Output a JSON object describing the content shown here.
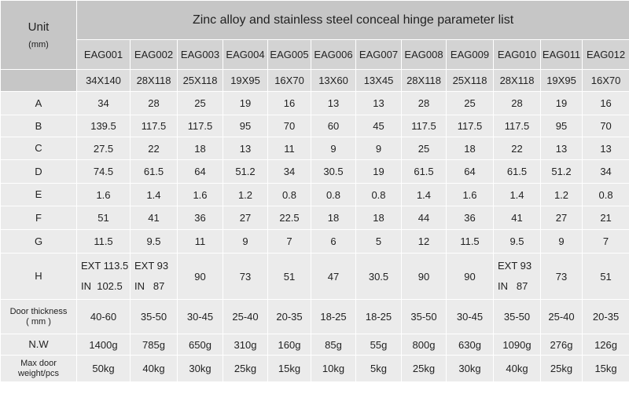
{
  "header": {
    "title": "Zinc alloy and stainless steel conceal hinge  parameter list",
    "unit": "Unit",
    "unit_sub": "(mm)"
  },
  "models": [
    {
      "code": "EAG001",
      "size": "34X140"
    },
    {
      "code": "EAG002",
      "size": "28X118"
    },
    {
      "code": "EAG003",
      "size": "25X118"
    },
    {
      "code": "EAG004",
      "size": "19X95"
    },
    {
      "code": "EAG005",
      "size": "16X70"
    },
    {
      "code": "EAG006",
      "size": "13X60"
    },
    {
      "code": "EAG007",
      "size": "13X45"
    },
    {
      "code": "EAG008",
      "size": "28X118"
    },
    {
      "code": "EAG009",
      "size": "25X118"
    },
    {
      "code": "EAG010",
      "size": "28X118"
    },
    {
      "code": "EAG011",
      "size": "19X95"
    },
    {
      "code": "EAG012",
      "size": "16X70"
    }
  ],
  "rows": [
    {
      "label": [
        "A"
      ],
      "values": [
        "34",
        "28",
        "25",
        "19",
        "16",
        "13",
        "13",
        "28",
        "25",
        "28",
        "19",
        "16"
      ]
    },
    {
      "label": [
        "B"
      ],
      "values": [
        "139.5",
        "117.5",
        "117.5",
        "95",
        "70",
        "60",
        "45",
        "117.5",
        "117.5",
        "117.5",
        "95",
        "70"
      ]
    },
    {
      "label": [
        "C"
      ],
      "values": [
        "27.5",
        "22",
        "18",
        "13",
        "11",
        "9",
        "9",
        "25",
        "18",
        "22",
        "13",
        "13"
      ]
    },
    {
      "label": [
        "D"
      ],
      "values": [
        "74.5",
        "61.5",
        "64",
        "51.2",
        "34",
        "30.5",
        "19",
        "61.5",
        "64",
        "61.5",
        "51.2",
        "34"
      ]
    },
    {
      "label": [
        "E"
      ],
      "values": [
        "1.6",
        "1.4",
        "1.6",
        "1.2",
        "0.8",
        "0.8",
        "0.8",
        "1.4",
        "1.6",
        "1.4",
        "1.2",
        "0.8"
      ]
    },
    {
      "label": [
        "F"
      ],
      "values": [
        "51",
        "41",
        "36",
        "27",
        "22.5",
        "18",
        "18",
        "44",
        "36",
        "41",
        "27",
        "21"
      ]
    },
    {
      "label": [
        "G"
      ],
      "values": [
        "11.5",
        "9.5",
        "11",
        "9",
        "7",
        "6",
        "5",
        "12",
        "11.5",
        "9.5",
        "9",
        "7"
      ]
    },
    {
      "label": [
        "H"
      ],
      "values": [
        [
          "EXT 113.5",
          "IN  102.5"
        ],
        [
          "EXT 93",
          "IN   87"
        ],
        "90",
        "73",
        "51",
        "47",
        "30.5",
        "90",
        "90",
        [
          "EXT 93",
          "IN   87"
        ],
        "73",
        "51"
      ]
    },
    {
      "label": [
        "Door thickness",
        "( mm )"
      ],
      "values": [
        "40-60",
        "35-50",
        "30-45",
        "25-40",
        "20-35",
        "18-25",
        "18-25",
        "35-50",
        "30-45",
        "35-50",
        "25-40",
        "20-35"
      ]
    },
    {
      "label": [
        "N.W"
      ],
      "values": [
        "1400g",
        "785g",
        "650g",
        "310g",
        "160g",
        "85g",
        "55g",
        "800g",
        "630g",
        "1090g",
        "276g",
        "126g"
      ]
    },
    {
      "label": [
        "Max door",
        "weight/pcs"
      ],
      "values": [
        "50kg",
        "40kg",
        "30kg",
        "25kg",
        "15kg",
        "10kg",
        "5kg",
        "25kg",
        "30kg",
        "40kg",
        "25kg",
        "15kg"
      ]
    }
  ]
}
